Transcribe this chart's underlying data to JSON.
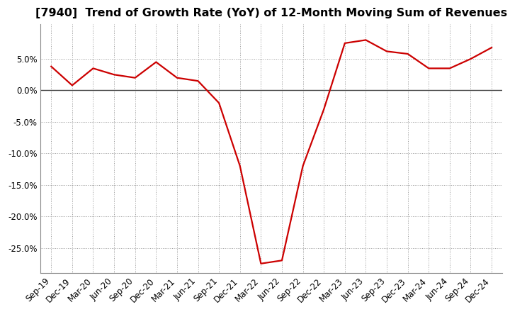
{
  "title": "[7940]  Trend of Growth Rate (YoY) of 12-Month Moving Sum of Revenues",
  "x_labels": [
    "Sep-19",
    "Dec-19",
    "Mar-20",
    "Jun-20",
    "Sep-20",
    "Dec-20",
    "Mar-21",
    "Jun-21",
    "Sep-21",
    "Dec-21",
    "Mar-22",
    "Jun-22",
    "Sep-22",
    "Dec-22",
    "Mar-23",
    "Jun-23",
    "Sep-23",
    "Dec-23",
    "Mar-24",
    "Jun-24",
    "Sep-24",
    "Dec-24"
  ],
  "y_values": [
    3.8,
    0.8,
    3.5,
    2.5,
    2.0,
    4.5,
    2.0,
    1.5,
    -2.0,
    -12.0,
    -27.5,
    -27.0,
    -12.0,
    -3.0,
    7.5,
    8.0,
    6.2,
    5.8,
    3.5,
    3.5,
    5.0,
    6.8
  ],
  "line_color": "#cc0000",
  "background_color": "#ffffff",
  "grid_color": "#999999",
  "zero_line_color": "#444444",
  "ylim": [
    -29.0,
    10.5
  ],
  "yticks": [
    5.0,
    0.0,
    -5.0,
    -10.0,
    -15.0,
    -20.0,
    -25.0
  ],
  "title_fontsize": 11.5,
  "tick_fontsize": 8.5
}
